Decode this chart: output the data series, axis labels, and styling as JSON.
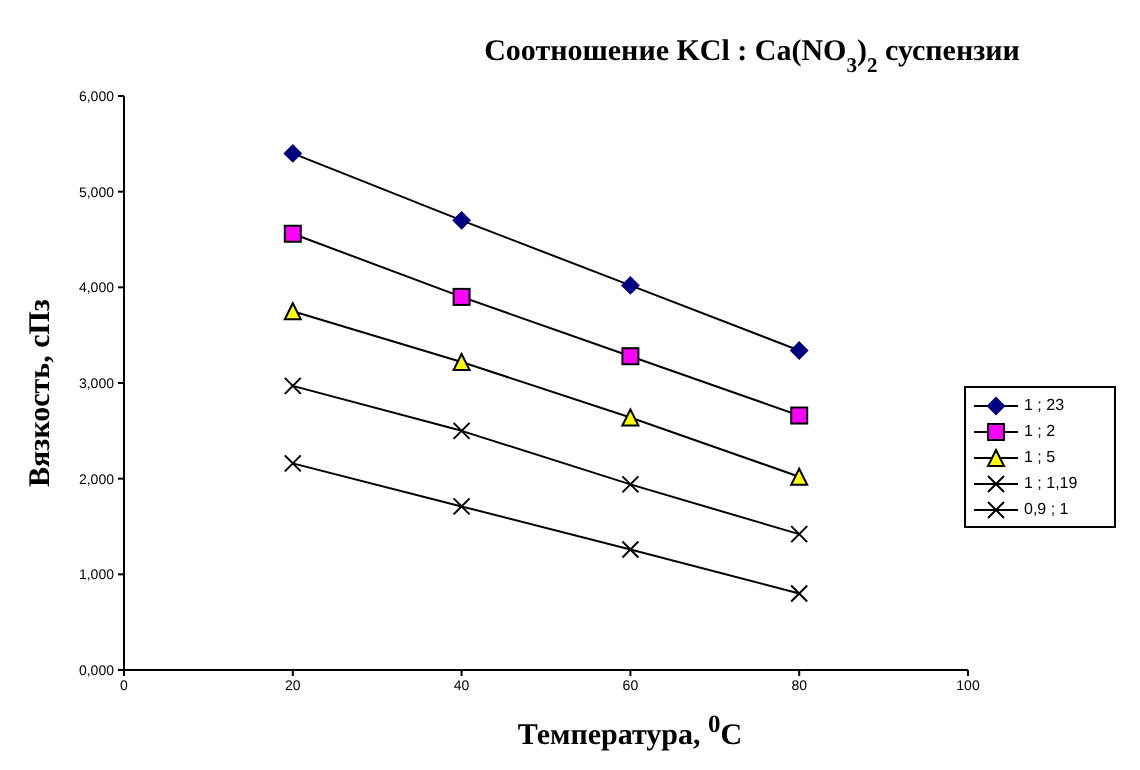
{
  "chart_data": {
    "type": "line",
    "title": "Соотношение KCl : Ca(NO$_{3}$)$_{2}$ суспензии",
    "xlabel": "Температура, $^{0}$C",
    "ylabel": "Вязкость, сПз",
    "x": [
      20,
      40,
      60,
      80
    ],
    "series": [
      {
        "name": "1 ; 23",
        "color": "#000080",
        "marker": "diamond",
        "values": [
          5.4,
          4.7,
          4.02,
          3.34
        ]
      },
      {
        "name": "1 ; 2",
        "color": "#ff00ff",
        "marker": "square",
        "values": [
          4.56,
          3.9,
          3.28,
          2.66
        ]
      },
      {
        "name": "1 ; 5",
        "color": "#ffff00",
        "marker": "triangle",
        "values": [
          3.75,
          3.22,
          2.64,
          2.02
        ]
      },
      {
        "name": "1 ; 1,19",
        "color": "#000000",
        "marker": "cross",
        "values": [
          2.97,
          2.5,
          1.94,
          1.42
        ]
      },
      {
        "name": "0,9 ; 1",
        "color": "#000000",
        "marker": "cross",
        "values": [
          2.16,
          1.71,
          1.26,
          0.8
        ]
      }
    ],
    "xlim": [
      0,
      100
    ],
    "xticks": [
      0,
      20,
      40,
      60,
      80,
      100
    ],
    "ylim": [
      0,
      6
    ],
    "yticks": [
      {
        "value": 0,
        "label": "0,000"
      },
      {
        "value": 1,
        "label": "1,000"
      },
      {
        "value": 2,
        "label": "2,000"
      },
      {
        "value": 3,
        "label": "3,000"
      },
      {
        "value": 4,
        "label": "4,000"
      },
      {
        "value": 5,
        "label": "5,000"
      },
      {
        "value": 6,
        "label": "6,000"
      }
    ],
    "grid": false,
    "legend": "right"
  }
}
